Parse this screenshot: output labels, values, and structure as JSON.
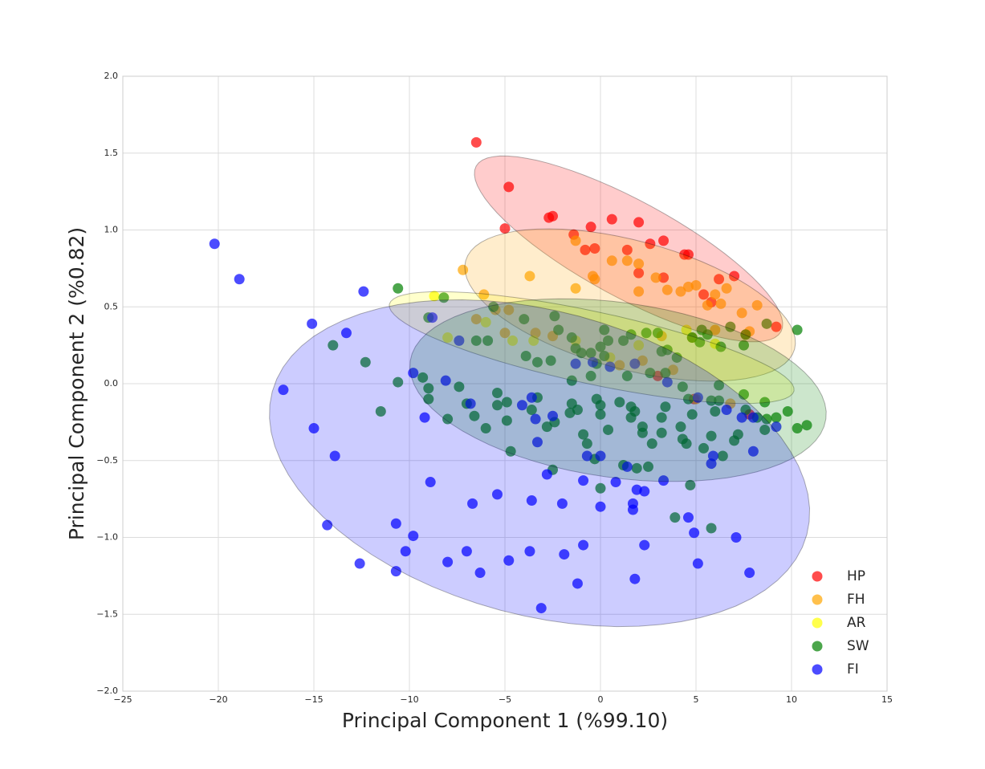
{
  "chart_data": {
    "type": "scatter",
    "xlabel": "Principal Component 1 (%99.10)",
    "ylabel": "Principal Component 2 (%0.82)",
    "xlim": [
      -25,
      15
    ],
    "ylim": [
      -2,
      2
    ],
    "xticks": [
      {
        "value": -25,
        "label": "−25"
      },
      {
        "value": -20,
        "label": "−20"
      },
      {
        "value": -15,
        "label": "−15"
      },
      {
        "value": -10,
        "label": "−10"
      },
      {
        "value": -5,
        "label": "−5"
      },
      0,
      5,
      10,
      15
    ],
    "yticks": [
      {
        "value": -2,
        "label": "−2.0"
      },
      {
        "value": -1.5,
        "label": "−1.5"
      },
      {
        "value": -1,
        "label": "−1.0"
      },
      {
        "value": -0.5,
        "label": "−0.5"
      },
      {
        "value": 0,
        "label": "0.0"
      },
      0.5,
      {
        "value": 1,
        "label": "1.0"
      },
      1.5,
      {
        "value": 2,
        "label": "2.0"
      }
    ],
    "grid": true,
    "legend": "lower right",
    "series": [
      {
        "name": "HP",
        "color": "#ff0000",
        "x": [
          -6.5,
          -4.8,
          -5,
          -2.7,
          -2.5,
          -1.4,
          -0.5,
          0.6,
          2,
          -0.8,
          -0.3,
          1.4,
          2.6,
          3.3,
          2,
          3.3,
          4.4,
          4.6,
          5.4,
          5.8,
          6.2,
          7,
          9.2,
          3,
          4.9,
          7.8
        ],
        "values": [
          1.57,
          1.28,
          1.01,
          1.08,
          1.09,
          0.97,
          1.02,
          1.07,
          1.05,
          0.87,
          0.88,
          0.87,
          0.91,
          0.93,
          0.72,
          0.69,
          0.84,
          0.84,
          0.58,
          0.53,
          0.68,
          0.7,
          0.37,
          0.05,
          -0.1,
          -0.2
        ],
        "ellipse": {
          "center": [
            1.47,
            0.877
          ],
          "axis1": [
            7.98,
            -0.538
          ],
          "axis2": [
            -1.2,
            -0.276
          ]
        }
      },
      {
        "name": "FH",
        "color": "#ffa500",
        "x": [
          -7.2,
          -6.1,
          -3.7,
          -1.3,
          -1.3,
          -0.4,
          -0.3,
          0.6,
          1.4,
          2,
          2,
          2.9,
          3.5,
          4.2,
          4.6,
          5,
          5.6,
          6,
          6.3,
          6.6,
          7.4,
          8.2,
          7.8,
          -6.5,
          -5.5,
          -4.8,
          -5,
          -3.4,
          -2.5,
          3.2,
          4.8,
          6,
          7.6,
          6.8,
          5,
          1,
          2.2,
          3.8
        ],
        "values": [
          0.74,
          0.58,
          0.7,
          0.93,
          0.62,
          0.7,
          0.68,
          0.8,
          0.8,
          0.78,
          0.6,
          0.69,
          0.61,
          0.6,
          0.63,
          0.64,
          0.51,
          0.58,
          0.52,
          0.62,
          0.46,
          0.51,
          0.34,
          0.42,
          0.48,
          0.48,
          0.33,
          0.33,
          0.31,
          0.31,
          0.3,
          0.35,
          0.32,
          -0.13,
          -0.1,
          0.12,
          0.15,
          0.09
        ],
        "ellipse": {
          "center": [
            1.55,
            0.512
          ],
          "axis1": [
            8.61,
            -0.287
          ],
          "axis2": [
            -0.87,
            -0.404
          ]
        }
      },
      {
        "name": "AR",
        "color": "#ffff00",
        "x": [
          -8.7,
          -8,
          -4.6,
          -3.5,
          -1.3,
          2,
          4.5,
          -6,
          0.5,
          6
        ],
        "values": [
          0.57,
          0.3,
          0.28,
          0.28,
          0.28,
          0.25,
          0.35,
          0.4,
          0.17,
          0.26
        ],
        "ellipse": {
          "center": [
            -0.46,
            0.235
          ],
          "axis1": [
            10.59,
            -0.282
          ],
          "axis2": [
            -0.39,
            -0.23
          ]
        }
      },
      {
        "name": "SW",
        "color": "#008000",
        "x": [
          -10.6,
          -8.2,
          -9,
          -5.6,
          -4,
          -2.4,
          -6.5,
          -5.9,
          -3.9,
          -3.3,
          -2.6,
          -2.2,
          -1.5,
          -1.3,
          -1,
          -0.5,
          0,
          0.2,
          0.4,
          0.2,
          -0.2,
          1.2,
          1.6,
          2.4,
          3,
          3.5,
          3.2,
          4,
          4.8,
          5.2,
          5.6,
          6.3,
          6.8,
          7.5,
          7.6,
          8.7,
          10.3,
          -14,
          -12.3,
          -11.5,
          -10.6,
          -9.3,
          -9,
          -9,
          -8,
          -7.4,
          -7,
          -6.6,
          -6,
          -5.4,
          -5.4,
          -4.9,
          -4.9,
          -4.7,
          -3.6,
          -3.3,
          -2.8,
          -2.4,
          -1.5,
          -1.6,
          -1.2,
          -0.9,
          -0.2,
          0,
          0,
          0.4,
          1,
          1.6,
          1.6,
          1.8,
          2.2,
          2.2,
          2.7,
          3.2,
          3.2,
          3.4,
          4.2,
          4.3,
          4.5,
          4.6,
          4.8,
          5.4,
          5.8,
          6,
          6.4,
          7,
          7.2,
          7.6,
          8.2,
          8.6,
          8.7,
          8.6,
          9.2,
          9.8,
          10.3,
          10.8,
          7.5,
          6.2,
          5.8,
          3.4,
          2.6,
          1.4,
          -0.7,
          -0.3,
          1.2,
          1.9,
          2.5,
          0,
          -2.5,
          3.9,
          4.7,
          5.8,
          -1.5,
          -0.5,
          4.3,
          5.3,
          6.2
        ],
        "values": [
          0.62,
          0.56,
          0.43,
          0.5,
          0.42,
          0.44,
          0.28,
          0.28,
          0.18,
          0.14,
          0.15,
          0.35,
          0.3,
          0.23,
          0.2,
          0.2,
          0.24,
          0.35,
          0.28,
          0.18,
          0.13,
          0.28,
          0.32,
          0.33,
          0.33,
          0.22,
          0.21,
          0.17,
          0.3,
          0.27,
          0.32,
          0.24,
          0.37,
          0.25,
          0.32,
          0.39,
          0.35,
          0.25,
          0.14,
          -0.18,
          0.01,
          0.04,
          -0.03,
          -0.1,
          -0.23,
          -0.02,
          -0.13,
          -0.21,
          -0.29,
          -0.06,
          -0.14,
          -0.12,
          -0.24,
          -0.44,
          -0.17,
          -0.09,
          -0.28,
          -0.25,
          -0.13,
          -0.19,
          -0.17,
          -0.33,
          -0.1,
          -0.14,
          -0.2,
          -0.3,
          -0.12,
          -0.15,
          -0.22,
          -0.18,
          -0.28,
          -0.32,
          -0.39,
          -0.32,
          -0.22,
          -0.15,
          -0.28,
          -0.36,
          -0.39,
          -0.1,
          -0.2,
          -0.42,
          -0.34,
          -0.18,
          -0.47,
          -0.37,
          -0.33,
          -0.17,
          -0.22,
          -0.12,
          -0.23,
          -0.3,
          -0.22,
          -0.18,
          -0.29,
          -0.27,
          -0.07,
          -0.11,
          -0.11,
          0.07,
          0.07,
          0.05,
          -0.39,
          -0.49,
          -0.53,
          -0.55,
          -0.54,
          -0.68,
          -0.56,
          -0.87,
          -0.66,
          -0.94,
          0.02,
          0.05,
          -0.02,
          0.35,
          -0.01
        ],
        "ellipse": {
          "center": [
            0.92,
            -0.042
          ],
          "axis1": [
            10.88,
            -0.188
          ],
          "axis2": [
            -0.63,
            -0.564
          ]
        }
      },
      {
        "name": "FI",
        "color": "#0000ff",
        "x": [
          -20.2,
          -18.9,
          -12.4,
          -15.1,
          -13.3,
          -16.6,
          -15,
          -13.9,
          -14.3,
          -12.6,
          -10.7,
          -10.7,
          -10.2,
          -9.8,
          -8.9,
          -8,
          -7,
          -6.7,
          -6.3,
          -5.4,
          -4.8,
          -3.6,
          -3.7,
          -3.1,
          -2.8,
          -2,
          -1.9,
          -1.2,
          -0.9,
          -0.9,
          -0.7,
          0,
          0,
          0.8,
          1.4,
          1.7,
          1.7,
          1.8,
          1.9,
          2.3,
          2.3,
          3.3,
          4.6,
          4.9,
          5.1,
          7.1,
          7.8,
          5.8,
          5.9,
          8,
          8,
          9.2,
          7.4,
          6.6,
          5.1,
          -9.8,
          -8.1,
          -8.8,
          -7.4,
          -9.2,
          -6.8,
          -4.1,
          -3.6,
          -3.4,
          -3.3,
          -2.5,
          -1.3,
          0.5,
          1.8,
          3.5,
          -0.4
        ],
        "values": [
          0.91,
          0.68,
          0.6,
          0.39,
          0.33,
          -0.04,
          -0.29,
          -0.47,
          -0.92,
          -1.17,
          -0.91,
          -1.22,
          -1.09,
          -0.99,
          -0.64,
          -1.16,
          -1.09,
          -0.78,
          -1.23,
          -0.72,
          -1.15,
          -0.76,
          -1.09,
          -1.46,
          -0.59,
          -0.78,
          -1.11,
          -1.3,
          -1.05,
          -0.63,
          -0.47,
          -0.8,
          -0.47,
          -0.64,
          -0.54,
          -0.82,
          -0.78,
          -1.27,
          -0.69,
          -0.7,
          -1.05,
          -0.63,
          -0.87,
          -0.97,
          -1.17,
          -1.0,
          -1.23,
          -0.52,
          -0.47,
          -0.22,
          -0.44,
          -0.28,
          -0.22,
          -0.17,
          -0.09,
          0.07,
          0.02,
          0.43,
          0.28,
          -0.22,
          -0.13,
          -0.14,
          -0.09,
          -0.23,
          -0.38,
          -0.21,
          0.13,
          0.11,
          0.13,
          0.01,
          0.14
        ],
        "ellipse": {
          "center": [
            -3.19,
            -0.517
          ],
          "axis1": [
            13.99,
            -0.465
          ],
          "axis2": [
            -2.06,
            -0.956
          ]
        }
      }
    ]
  }
}
